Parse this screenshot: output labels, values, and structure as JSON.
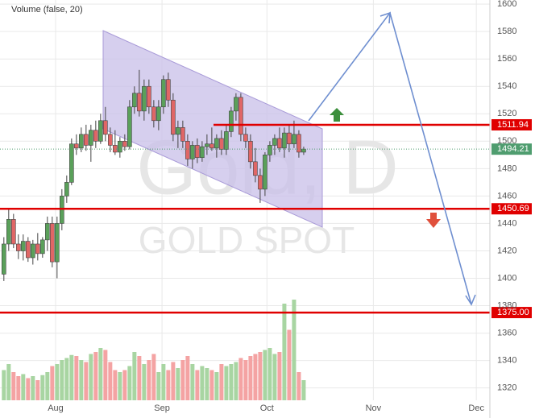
{
  "chart_data": {
    "type": "candlestick",
    "title": "Volume (false, 20)",
    "watermark": "Gold, D",
    "watermark_sub": "GOLD SPOT",
    "ylim": [
      1311,
      1603
    ],
    "yticks": [
      1320,
      1340,
      1360,
      1380,
      1400,
      1420,
      1440,
      1460,
      1480,
      1500,
      1520,
      1540,
      1560,
      1580,
      1600
    ],
    "xlim": [
      -0.8,
      100.5
    ],
    "xticks": [
      {
        "value": 10.7,
        "label": "Aug"
      },
      {
        "value": 32.7,
        "label": "Sep"
      },
      {
        "value": 54.4,
        "label": "Oct"
      },
      {
        "value": 76.4,
        "label": "Nov"
      },
      {
        "value": 97.7,
        "label": "Dec"
      }
    ],
    "grid": true,
    "up_color": "#5aa05a",
    "down_color": "#e06666",
    "volume_up_color": "#a8d5a2",
    "volume_down_color": "#f4a3a3",
    "open": [
      1403,
      1425,
      1443,
      1425,
      1420,
      1427,
      1415,
      1425,
      1418,
      1428,
      1440,
      1412,
      1440,
      1460,
      1470,
      1498,
      1495,
      1505,
      1497,
      1508,
      1500,
      1515,
      1505,
      1497,
      1492,
      1500,
      1496,
      1525,
      1535,
      1522,
      1540,
      1525,
      1515,
      1525,
      1545,
      1530,
      1505,
      1510,
      1500,
      1487,
      1497,
      1488,
      1496,
      1498,
      1495,
      1502,
      1494,
      1507,
      1522,
      1532,
      1505,
      1500,
      1485,
      1475,
      1465,
      1490,
      1497,
      1502,
      1495,
      1506,
      1498,
      1505,
      1492
    ],
    "high": [
      1430,
      1450,
      1447,
      1432,
      1432,
      1430,
      1428,
      1433,
      1430,
      1445,
      1445,
      1445,
      1465,
      1475,
      1502,
      1505,
      1510,
      1512,
      1512,
      1515,
      1520,
      1525,
      1510,
      1508,
      1503,
      1505,
      1530,
      1540,
      1552,
      1545,
      1545,
      1530,
      1530,
      1548,
      1550,
      1535,
      1515,
      1515,
      1505,
      1500,
      1502,
      1500,
      1505,
      1510,
      1505,
      1508,
      1512,
      1525,
      1535,
      1535,
      1510,
      1505,
      1495,
      1480,
      1492,
      1500,
      1505,
      1510,
      1510,
      1512,
      1515,
      1508,
      1496
    ],
    "low": [
      1398,
      1420,
      1422,
      1414,
      1413,
      1412,
      1410,
      1413,
      1415,
      1420,
      1408,
      1400,
      1435,
      1455,
      1468,
      1490,
      1492,
      1493,
      1485,
      1495,
      1498,
      1500,
      1492,
      1490,
      1488,
      1493,
      1494,
      1520,
      1518,
      1515,
      1520,
      1510,
      1508,
      1520,
      1525,
      1500,
      1495,
      1495,
      1482,
      1480,
      1484,
      1485,
      1490,
      1493,
      1488,
      1490,
      1490,
      1503,
      1515,
      1500,
      1495,
      1480,
      1470,
      1455,
      1460,
      1485,
      1490,
      1492,
      1488,
      1492,
      1495,
      1488,
      1490
    ],
    "close": [
      1425,
      1443,
      1425,
      1420,
      1427,
      1415,
      1425,
      1418,
      1428,
      1440,
      1412,
      1440,
      1460,
      1470,
      1498,
      1495,
      1505,
      1497,
      1508,
      1500,
      1515,
      1505,
      1497,
      1492,
      1500,
      1496,
      1525,
      1535,
      1522,
      1540,
      1525,
      1515,
      1525,
      1545,
      1530,
      1505,
      1510,
      1500,
      1487,
      1497,
      1488,
      1496,
      1498,
      1495,
      1502,
      1494,
      1507,
      1522,
      1532,
      1505,
      1500,
      1485,
      1475,
      1465,
      1490,
      1497,
      1502,
      1495,
      1506,
      1498,
      1505,
      1492,
      1494.21
    ],
    "volume": [
      30,
      36,
      28,
      24,
      26,
      22,
      24,
      20,
      25,
      28,
      34,
      36,
      40,
      42,
      45,
      44,
      40,
      38,
      46,
      48,
      52,
      50,
      38,
      30,
      28,
      30,
      34,
      48,
      44,
      36,
      40,
      46,
      28,
      36,
      30,
      38,
      32,
      40,
      44,
      36,
      30,
      34,
      32,
      30,
      28,
      36,
      34,
      36,
      38,
      42,
      40,
      44,
      46,
      48,
      50,
      52,
      46,
      48,
      96,
      70,
      100,
      28,
      20
    ],
    "levels": [
      1511.94,
      1450.69,
      {
        "value": 1375,
        "label": "1375.00"
      }
    ],
    "level_color": "#e00000",
    "current_price": 1494.21,
    "current_color": "#4f9d6f"
  }
}
